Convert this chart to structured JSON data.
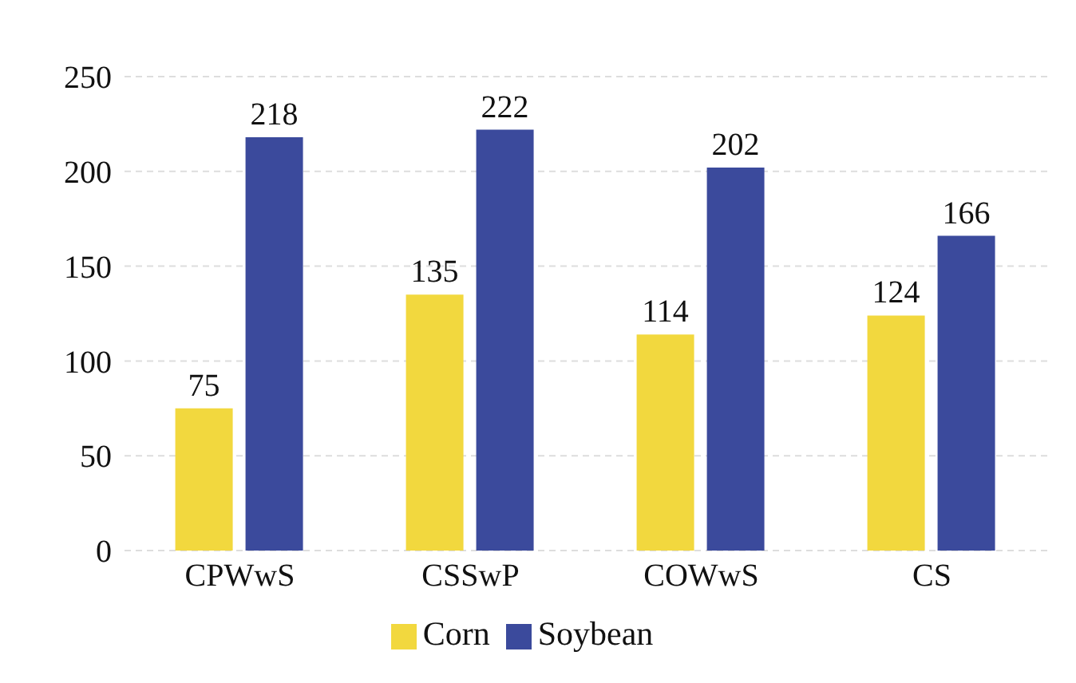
{
  "chart_data": {
    "type": "bar",
    "categories": [
      "CPWwS",
      "CSSwP",
      "COWwS",
      "CS"
    ],
    "series": [
      {
        "name": "Corn",
        "color": "#f2d83e",
        "values": [
          75,
          135,
          114,
          124
        ]
      },
      {
        "name": "Soybean",
        "color": "#3b4a9c",
        "values": [
          218,
          222,
          202,
          166
        ]
      }
    ],
    "ylim": [
      0,
      250
    ],
    "yticks": [
      0,
      50,
      100,
      150,
      200,
      250
    ],
    "grid": "y",
    "legend": "bottom",
    "data_labels": true
  }
}
